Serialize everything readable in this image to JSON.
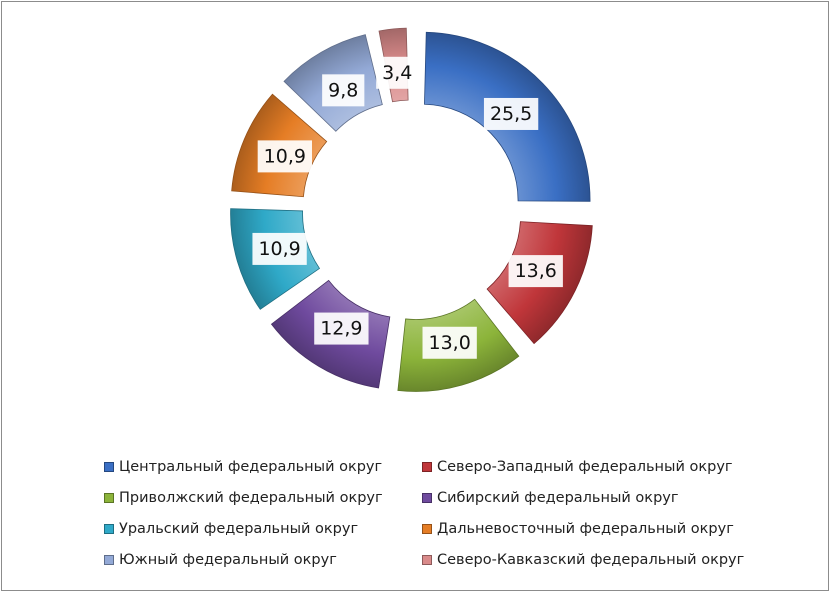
{
  "chart_data": {
    "type": "donut",
    "title": "",
    "unit": "",
    "legend_position": "bottom",
    "series": [
      {
        "name": "Центральный федеральный округ",
        "value": 25.5,
        "label": "25,5",
        "color": "#3a6fc4"
      },
      {
        "name": "Северо-Западный федеральный округ",
        "value": 13.6,
        "label": "13,6",
        "color": "#c0363a"
      },
      {
        "name": "Приволжский федеральный округ",
        "value": 13.0,
        "label": "13,0",
        "color": "#8cb43a"
      },
      {
        "name": "Сибирский федеральный округ",
        "value": 12.9,
        "label": "12,9",
        "color": "#6f4a9e"
      },
      {
        "name": "Уральский федеральный округ",
        "value": 10.9,
        "label": "10,9",
        "color": "#2fa9c8"
      },
      {
        "name": "Дальневосточный федеральный округ",
        "value": 10.9,
        "label": "10,9",
        "color": "#e57d25"
      },
      {
        "name": "Южный федеральный округ",
        "value": 9.8,
        "label": "9,8",
        "color": "#93a9d6"
      },
      {
        "name": "Северо-Кавказский федеральный округ",
        "value": 3.4,
        "label": "3,4",
        "color": "#d98a8a"
      }
    ]
  }
}
